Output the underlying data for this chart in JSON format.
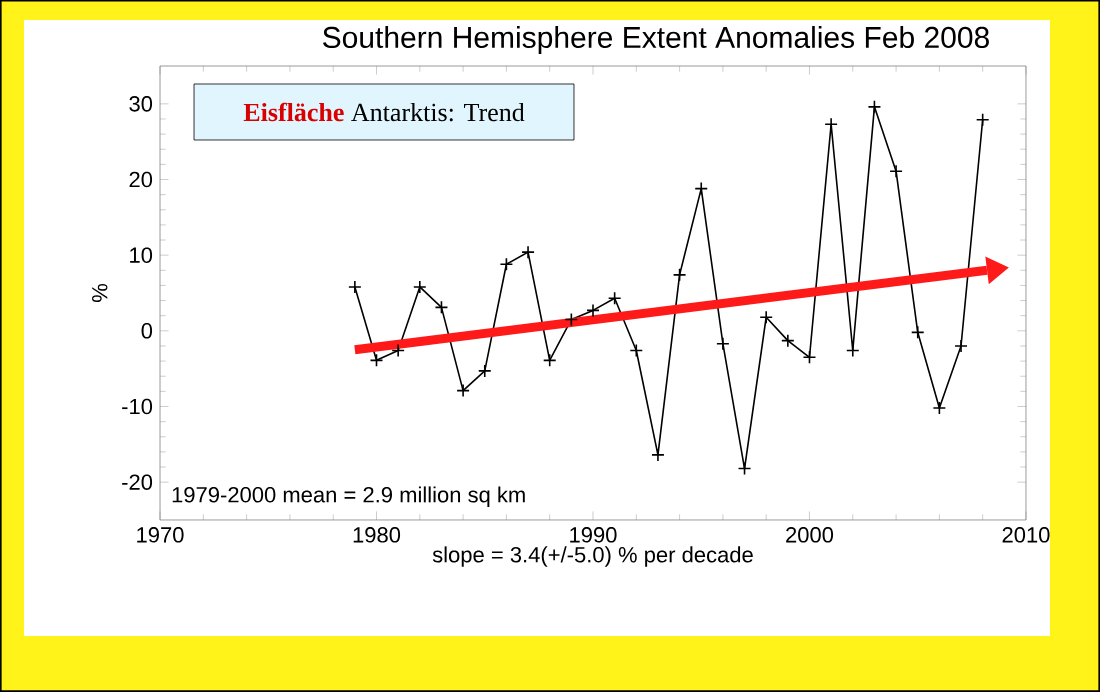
{
  "chart_data": {
    "type": "line",
    "title": "Southern Hemisphere Extent Anomalies Feb 2008",
    "ylabel": "%",
    "xlabel": "slope = 3.4(+/-5.0) % per decade",
    "annotations": [
      "**Eisfläche**",
      "Antarktis: Trend",
      "1979-2000 mean =   2.9 million sq km"
    ],
    "x": [
      1979,
      1980,
      1981,
      1982,
      1983,
      1984,
      1985,
      1986,
      1987,
      1988,
      1989,
      1990,
      1991,
      1992,
      1993,
      1994,
      1995,
      1996,
      1997,
      1998,
      1999,
      2000,
      2001,
      2002,
      2003,
      2004,
      2005,
      2006,
      2007,
      2008
    ],
    "series": [
      {
        "color": "#000000",
        "marker": "cross",
        "values": [
          5.8,
          -3.9,
          -2.6,
          5.8,
          3.1,
          -7.9,
          -5.3,
          8.8,
          10.4,
          -3.9,
          1.5,
          2.7,
          4.3,
          -2.6,
          -16.4,
          7.4,
          18.8,
          -1.7,
          -18.2,
          1.8,
          -1.3,
          -3.5,
          27.3,
          -2.6,
          29.6,
          21.1,
          -0.2,
          -10.2,
          -2.0,
          27.9
        ]
      },
      {
        "type": "line",
        "color": "#ff1a1a",
        "marker": "none",
        "x": [
          1979,
          2008.2
        ],
        "values": [
          -2.5,
          8.0
        ]
      }
    ],
    "xlim": [
      1970,
      2010
    ],
    "ylim": [
      -25,
      35
    ],
    "xticks": [
      1970,
      1980,
      1990,
      2000,
      2010
    ],
    "yticks": [
      -20,
      -10,
      0,
      10,
      20,
      30
    ],
    "grid": false
  }
}
